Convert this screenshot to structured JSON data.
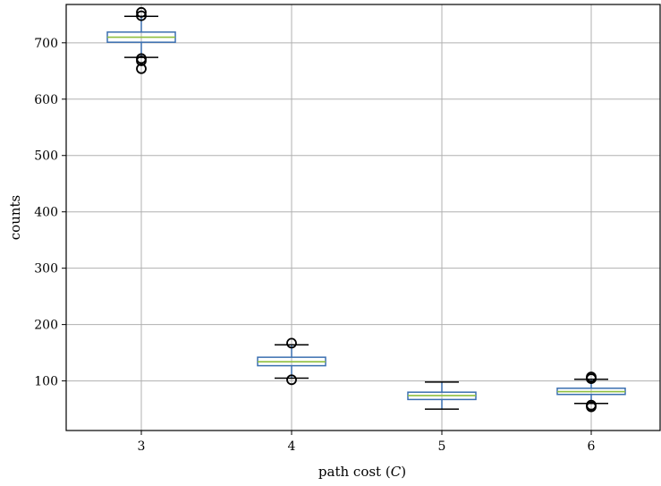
{
  "chart_data": {
    "type": "box",
    "xlabel": "path cost ",
    "xlabel_symbol": "C",
    "ylabel": "counts",
    "categories": [
      "3",
      "4",
      "5",
      "6"
    ],
    "yticks": [
      100,
      200,
      300,
      400,
      500,
      600,
      700
    ],
    "ylim": [
      12,
      768
    ],
    "grid": true,
    "boxes": [
      {
        "category": "3",
        "whisker_low": 674,
        "q1": 701,
        "median": 710,
        "q3": 719,
        "whisker_high": 747,
        "fliers": [
          754,
          748,
          672,
          668,
          654
        ]
      },
      {
        "category": "4",
        "whisker_low": 105,
        "q1": 127,
        "median": 134,
        "q3": 142,
        "whisker_high": 164,
        "fliers": [
          167,
          102
        ]
      },
      {
        "category": "5",
        "whisker_low": 50,
        "q1": 67,
        "median": 74,
        "q3": 80,
        "whisker_high": 98,
        "fliers": []
      },
      {
        "category": "6",
        "whisker_low": 60,
        "q1": 76,
        "median": 81,
        "q3": 87,
        "whisker_high": 103,
        "fliers": [
          107,
          104,
          57,
          54
        ]
      }
    ],
    "colors": {
      "box": "#3a6fb0",
      "median": "#8fbf3f",
      "flier": "#000000",
      "grid": "#b0b0b0"
    }
  }
}
